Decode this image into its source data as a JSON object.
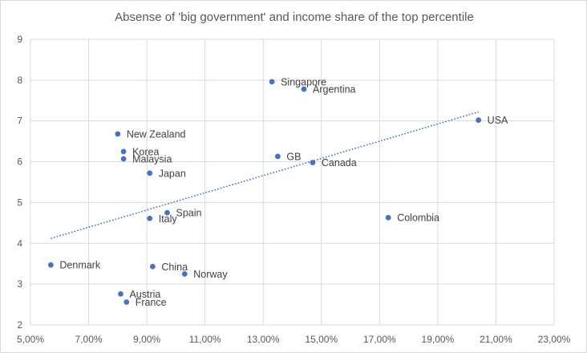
{
  "chart_data": {
    "type": "scatter",
    "title": "Absense of 'big government' and income share of the top percentile",
    "xlabel": "",
    "ylabel": "",
    "xlim": [
      0.05,
      0.23
    ],
    "ylim": [
      2,
      9
    ],
    "x_ticks": [
      0.05,
      0.07,
      0.09,
      0.11,
      0.13,
      0.15,
      0.17,
      0.19,
      0.21,
      0.23
    ],
    "x_tick_labels": [
      "5,00%",
      "7,00%",
      "9,00%",
      "11,00%",
      "13,00%",
      "15,00%",
      "17,00%",
      "19,00%",
      "21,00%",
      "23,00%"
    ],
    "y_ticks": [
      2,
      3,
      4,
      5,
      6,
      7,
      8,
      9
    ],
    "y_tick_labels": [
      "2",
      "3",
      "4",
      "5",
      "6",
      "7",
      "8",
      "9"
    ],
    "grid": true,
    "marker_color": "#4472c4",
    "trendline": {
      "kind": "linear",
      "style": "dotted",
      "color": "#4472c4",
      "x_from": 0.057,
      "x_to": 0.204,
      "y_from": 4.12,
      "y_to": 7.22
    },
    "points": [
      {
        "label": "Singapore",
        "x": 0.133,
        "y": 7.96
      },
      {
        "label": "Argentina",
        "x": 0.144,
        "y": 7.78
      },
      {
        "label": "USA",
        "x": 0.204,
        "y": 7.02
      },
      {
        "label": "New Zealand",
        "x": 0.08,
        "y": 6.68
      },
      {
        "label": "Korea",
        "x": 0.082,
        "y": 6.25
      },
      {
        "label": "Malaysia",
        "x": 0.082,
        "y": 6.07
      },
      {
        "label": "GB",
        "x": 0.135,
        "y": 6.13
      },
      {
        "label": "Canada",
        "x": 0.147,
        "y": 5.98
      },
      {
        "label": "Japan",
        "x": 0.091,
        "y": 5.72
      },
      {
        "label": "Spain",
        "x": 0.097,
        "y": 4.75
      },
      {
        "label": "Italy",
        "x": 0.091,
        "y": 4.61
      },
      {
        "label": "Colombia",
        "x": 0.173,
        "y": 4.63
      },
      {
        "label": "Denmark",
        "x": 0.057,
        "y": 3.47
      },
      {
        "label": "China",
        "x": 0.092,
        "y": 3.43
      },
      {
        "label": "Norway",
        "x": 0.103,
        "y": 3.25
      },
      {
        "label": "Austria",
        "x": 0.081,
        "y": 2.76
      },
      {
        "label": "France",
        "x": 0.083,
        "y": 2.56
      }
    ]
  }
}
